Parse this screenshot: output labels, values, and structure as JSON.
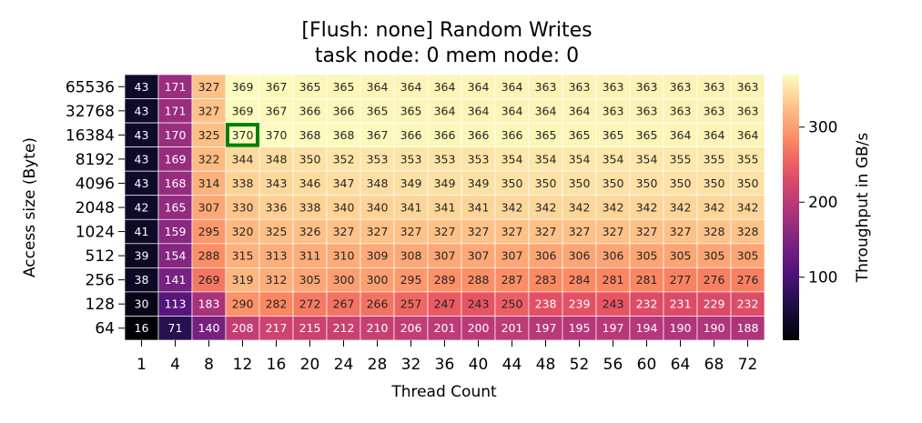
{
  "chart_data": {
    "type": "heatmap",
    "title": "[Flush: none] Random Writes",
    "subtitle": "task node: 0 mem node: 0",
    "xlabel": "Thread Count",
    "ylabel": "Access size (Byte)",
    "colorbar_label": "Throughput in GB/s",
    "colorbar_ticks": [
      100,
      200,
      300
    ],
    "colormap": "magma",
    "vmin": 16,
    "vmax": 370,
    "x": [
      "1",
      "4",
      "8",
      "12",
      "16",
      "20",
      "24",
      "28",
      "32",
      "36",
      "40",
      "44",
      "48",
      "52",
      "56",
      "60",
      "64",
      "68",
      "72"
    ],
    "y": [
      "65536",
      "32768",
      "16384",
      "8192",
      "4096",
      "2048",
      "1024",
      "512",
      "256",
      "128",
      "64"
    ],
    "values": [
      [
        43,
        171,
        327,
        369,
        367,
        365,
        365,
        364,
        364,
        364,
        364,
        364,
        363,
        363,
        363,
        363,
        363,
        363,
        363
      ],
      [
        43,
        171,
        327,
        369,
        367,
        366,
        366,
        365,
        365,
        364,
        364,
        364,
        364,
        364,
        363,
        363,
        363,
        363,
        363
      ],
      [
        43,
        170,
        325,
        370,
        370,
        368,
        368,
        367,
        366,
        366,
        366,
        366,
        365,
        365,
        365,
        365,
        364,
        364,
        364
      ],
      [
        43,
        169,
        322,
        344,
        348,
        350,
        352,
        353,
        353,
        353,
        353,
        354,
        354,
        354,
        354,
        354,
        355,
        355,
        355
      ],
      [
        43,
        168,
        314,
        338,
        343,
        346,
        347,
        348,
        349,
        349,
        349,
        350,
        350,
        350,
        350,
        350,
        350,
        350,
        350
      ],
      [
        42,
        165,
        307,
        330,
        336,
        338,
        340,
        340,
        341,
        341,
        341,
        342,
        342,
        342,
        342,
        342,
        342,
        342,
        342
      ],
      [
        41,
        159,
        295,
        320,
        325,
        326,
        327,
        327,
        327,
        327,
        327,
        327,
        327,
        327,
        327,
        327,
        327,
        328,
        328
      ],
      [
        39,
        154,
        288,
        315,
        313,
        311,
        310,
        309,
        308,
        307,
        307,
        307,
        306,
        306,
        306,
        305,
        305,
        305,
        305
      ],
      [
        38,
        141,
        269,
        319,
        312,
        305,
        300,
        300,
        295,
        289,
        288,
        287,
        283,
        284,
        281,
        281,
        277,
        276,
        276
      ],
      [
        30,
        113,
        183,
        290,
        282,
        272,
        267,
        266,
        257,
        247,
        243,
        250,
        238,
        239,
        243,
        232,
        231,
        229,
        232
      ],
      [
        16,
        71,
        140,
        208,
        217,
        215,
        212,
        210,
        206,
        201,
        200,
        201,
        197,
        195,
        197,
        194,
        190,
        190,
        188
      ]
    ],
    "highlight": {
      "x": "12",
      "y": "16384",
      "value": 370,
      "color": "#008000"
    }
  }
}
